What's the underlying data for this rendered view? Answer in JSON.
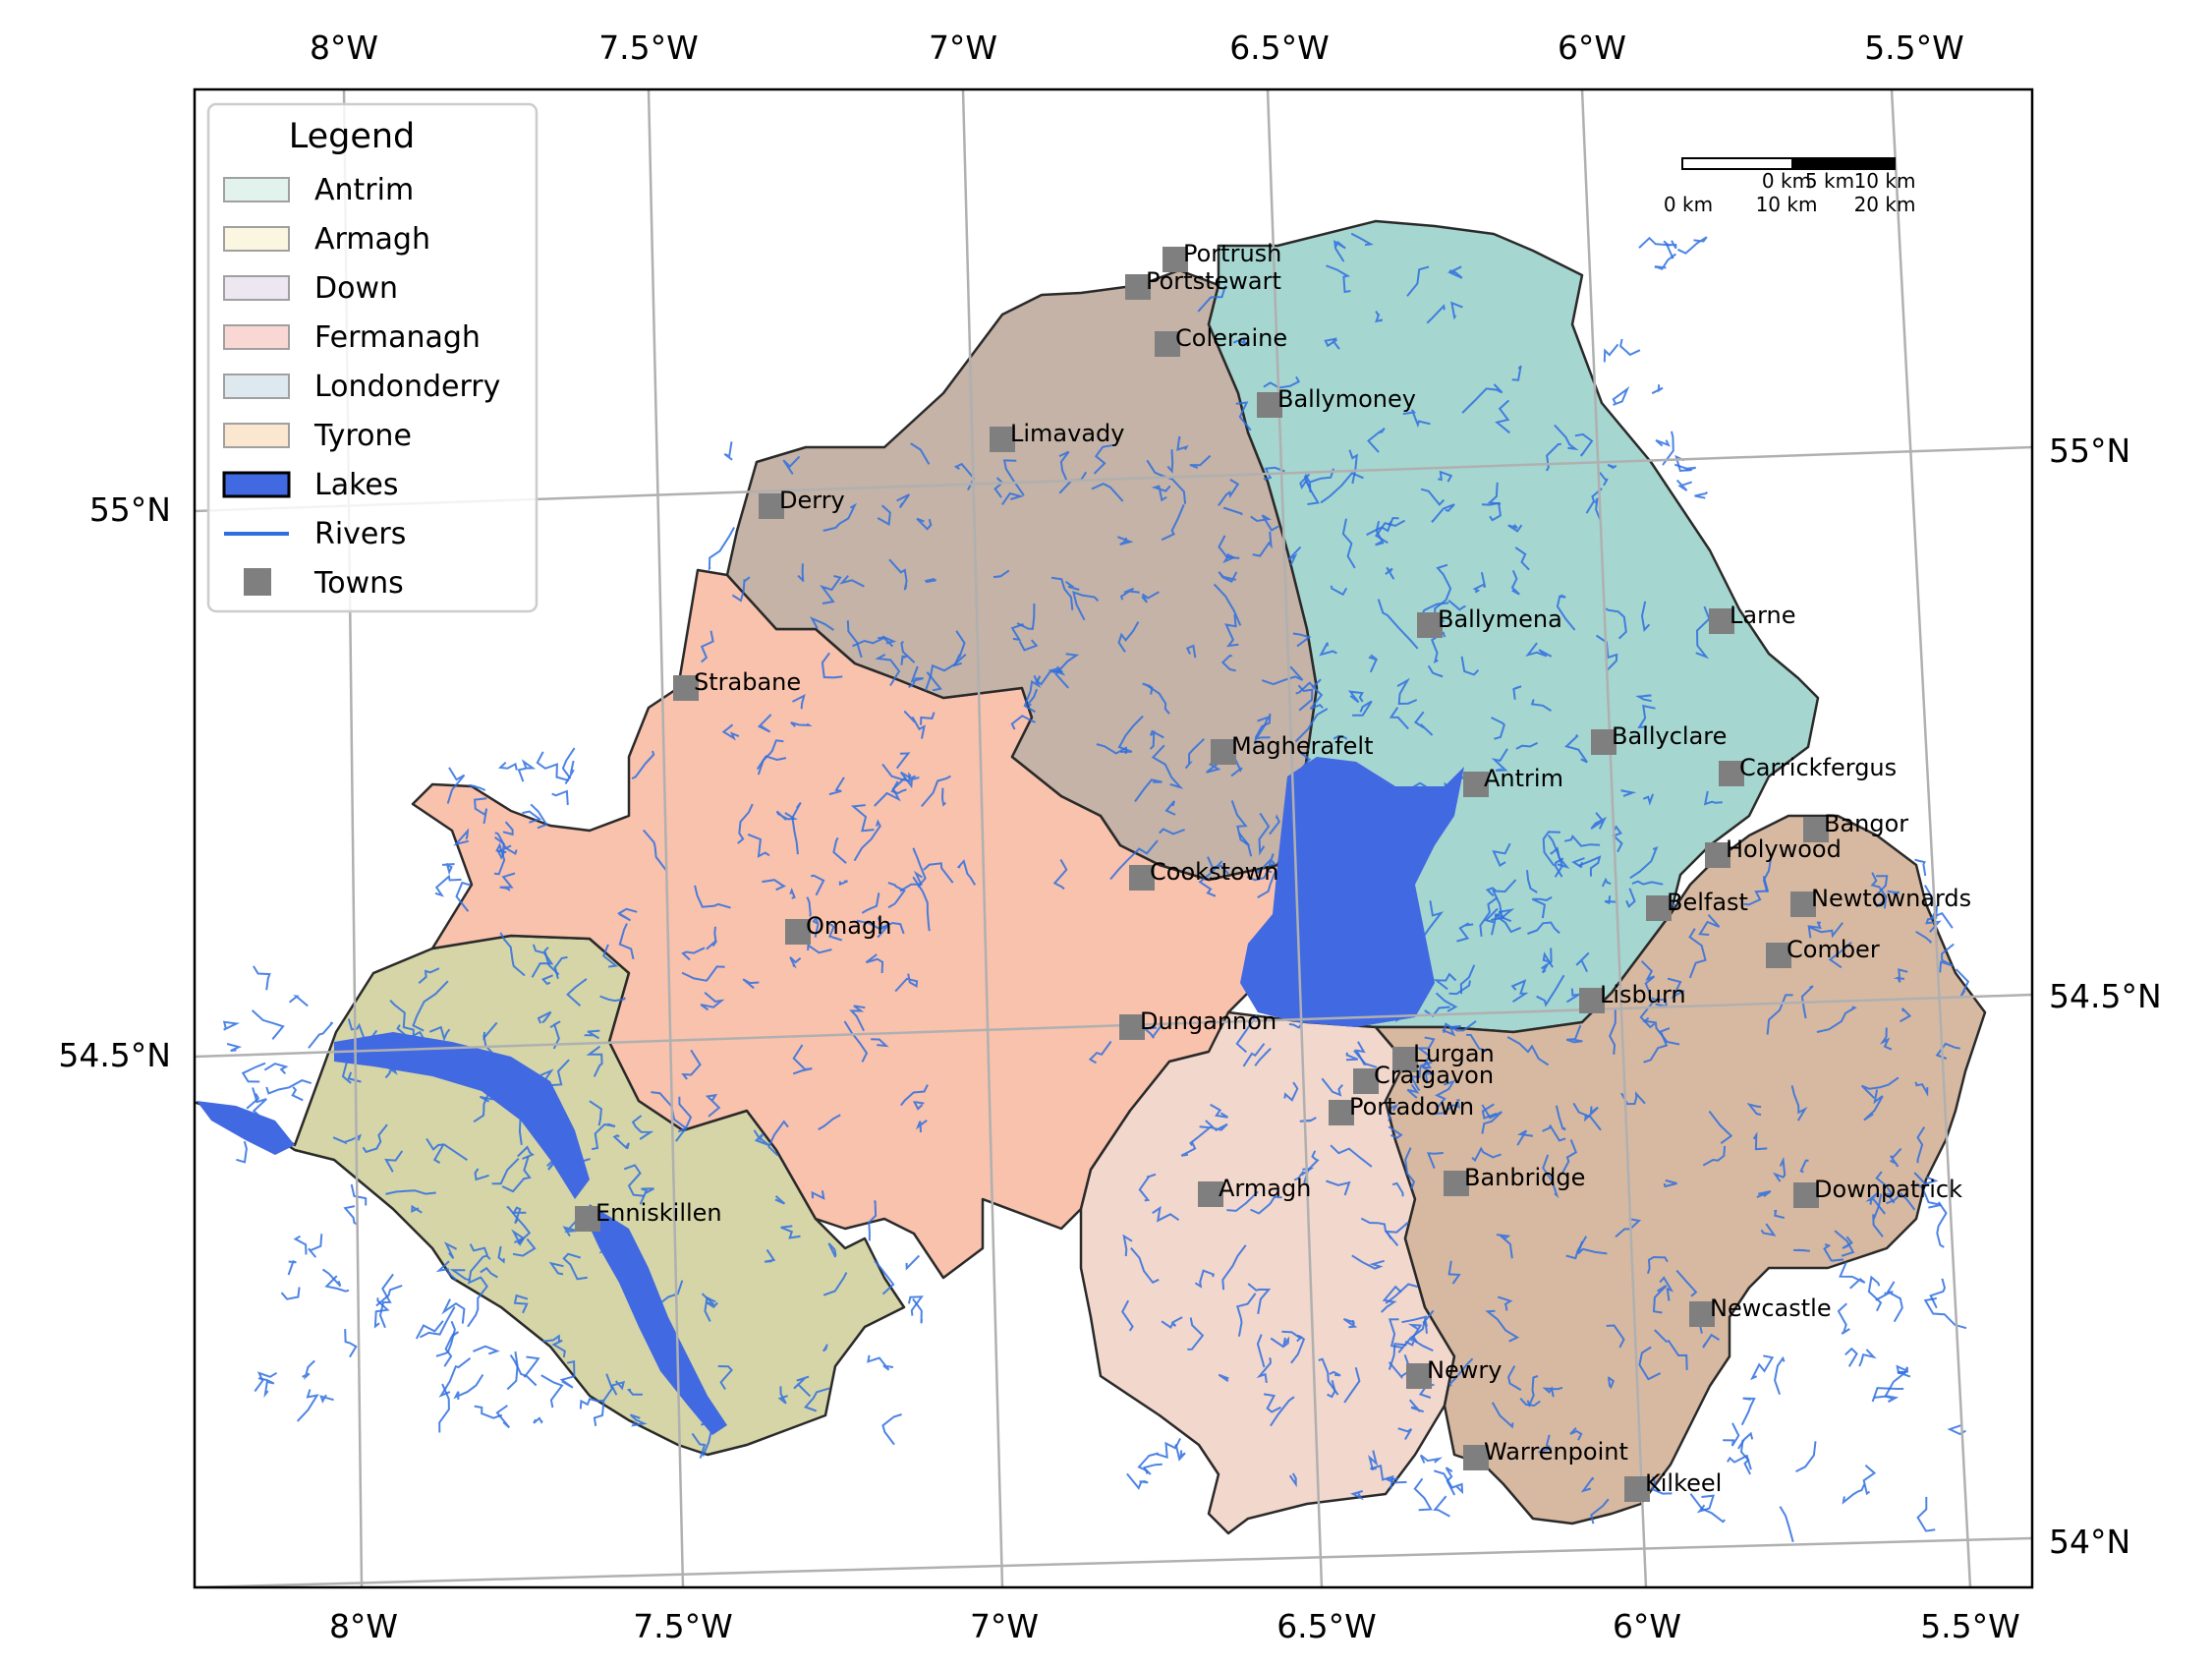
{
  "colors": {
    "Antrim": "#a6d6d0",
    "Armagh": "#f2d7cc",
    "Down": "#d7b9a1",
    "Fermanagh": "#d5d5a8",
    "Londonderry": "#c4b3a6",
    "Tyrone": "#f8c2ad",
    "lakes": "#4169e1",
    "rivers": "#2e6fe0",
    "towns": "#7f7f7f",
    "grid": "#b0b0b0"
  },
  "axes": {
    "top_ticks": [
      "8°W",
      "7.5°W",
      "7°W",
      "6.5°W",
      "6°W",
      "5.5°W"
    ],
    "bottom_ticks": [
      "8°W",
      "7.5°W",
      "7°W",
      "6.5°W",
      "6°W",
      "5.5°W"
    ],
    "left_ticks": [
      "55°N",
      "54.5°N"
    ],
    "right_ticks": [
      "55°N",
      "54.5°N",
      "54°N"
    ]
  },
  "legend": {
    "title": "Legend",
    "items": [
      {
        "label": "Antrim",
        "kind": "patch",
        "color": "#e2f3ee"
      },
      {
        "label": "Armagh",
        "kind": "patch",
        "color": "#fbf6df"
      },
      {
        "label": "Down",
        "kind": "patch",
        "color": "#ece7f1"
      },
      {
        "label": "Fermanagh",
        "kind": "patch",
        "color": "#f9d8d4"
      },
      {
        "label": "Londonderry",
        "kind": "patch",
        "color": "#dde8ef"
      },
      {
        "label": "Tyrone",
        "kind": "patch",
        "color": "#fbe6cf"
      },
      {
        "label": "Lakes",
        "kind": "lake",
        "color": "#4169e1"
      },
      {
        "label": "Rivers",
        "kind": "line",
        "color": "#2e6fe0"
      },
      {
        "label": "Towns",
        "kind": "marker",
        "color": "#7f7f7f"
      }
    ]
  },
  "scale_bar": {
    "row1": [
      "0 km",
      "5 km",
      "10 km"
    ],
    "row2": [
      "0 km",
      "10 km",
      "20 km"
    ]
  },
  "towns": [
    {
      "name": "Portrush"
    },
    {
      "name": "Portstewart"
    },
    {
      "name": "Coleraine"
    },
    {
      "name": "Ballymoney"
    },
    {
      "name": "Limavady"
    },
    {
      "name": "Derry"
    },
    {
      "name": "Ballymena"
    },
    {
      "name": "Larne"
    },
    {
      "name": "Strabane"
    },
    {
      "name": "Magherafelt"
    },
    {
      "name": "Ballyclare"
    },
    {
      "name": "Antrim"
    },
    {
      "name": "Carrickfergus"
    },
    {
      "name": "Bangor"
    },
    {
      "name": "Holywood"
    },
    {
      "name": "Cookstown"
    },
    {
      "name": "Belfast"
    },
    {
      "name": "Newtownards"
    },
    {
      "name": "Omagh"
    },
    {
      "name": "Comber"
    },
    {
      "name": "Lisburn"
    },
    {
      "name": "Dungannon"
    },
    {
      "name": "Lurgan"
    },
    {
      "name": "Craigavon"
    },
    {
      "name": "Portadown"
    },
    {
      "name": "Banbridge"
    },
    {
      "name": "Armagh"
    },
    {
      "name": "Downpatrick"
    },
    {
      "name": "Enniskillen"
    },
    {
      "name": "Newcastle"
    },
    {
      "name": "Newry"
    },
    {
      "name": "Warrenpoint"
    },
    {
      "name": "Kilkeel"
    }
  ]
}
